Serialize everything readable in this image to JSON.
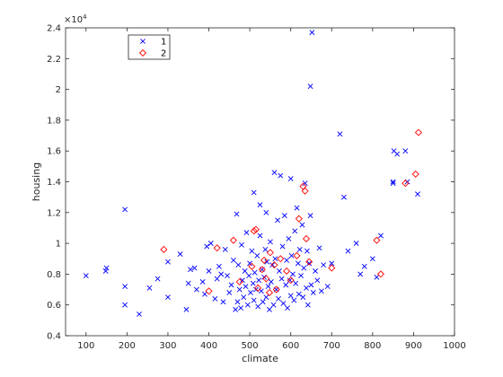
{
  "chart_data": {
    "type": "scatter",
    "xlabel": "climate",
    "ylabel": "housing",
    "xlim": [
      50,
      1000
    ],
    "ylim": [
      4000,
      24000
    ],
    "xticks": [
      100,
      200,
      300,
      400,
      500,
      600,
      700,
      800,
      900,
      1000
    ],
    "yticks": [
      4000,
      6000,
      8000,
      10000,
      12000,
      14000,
      16000,
      18000,
      20000,
      22000,
      24000
    ],
    "ytick_labels": [
      "0.4",
      "0.6",
      "0.8",
      "1",
      "1.2",
      "1.4",
      "1.6",
      "1.8",
      "2",
      "2.2",
      "2.4"
    ],
    "y_exponent_label": "×10",
    "y_exponent_power": "4",
    "legend_position": "top-left",
    "grid": false,
    "series": [
      {
        "name": "1",
        "marker": "x",
        "color": "#0000ff",
        "points": [
          [
            100,
            7900
          ],
          [
            148,
            8200
          ],
          [
            150,
            8400
          ],
          [
            195,
            12200
          ],
          [
            195,
            7200
          ],
          [
            195,
            6000
          ],
          [
            230,
            5400
          ],
          [
            255,
            7100
          ],
          [
            275,
            7700
          ],
          [
            300,
            6500
          ],
          [
            300,
            8800
          ],
          [
            330,
            9300
          ],
          [
            345,
            5700
          ],
          [
            350,
            7400
          ],
          [
            355,
            8300
          ],
          [
            365,
            8400
          ],
          [
            370,
            7000
          ],
          [
            385,
            7500
          ],
          [
            390,
            6700
          ],
          [
            395,
            9800
          ],
          [
            400,
            8200
          ],
          [
            405,
            10000
          ],
          [
            415,
            6400
          ],
          [
            420,
            7700
          ],
          [
            425,
            8500
          ],
          [
            430,
            8000
          ],
          [
            435,
            6200
          ],
          [
            440,
            9600
          ],
          [
            445,
            7900
          ],
          [
            450,
            6800
          ],
          [
            455,
            7300
          ],
          [
            460,
            8900
          ],
          [
            465,
            5700
          ],
          [
            468,
            11900
          ],
          [
            470,
            6200
          ],
          [
            472,
            8600
          ],
          [
            475,
            7000
          ],
          [
            478,
            5800
          ],
          [
            480,
            9900
          ],
          [
            482,
            7600
          ],
          [
            485,
            6500
          ],
          [
            488,
            8200
          ],
          [
            490,
            7200
          ],
          [
            492,
            10700
          ],
          [
            495,
            6000
          ],
          [
            498,
            7900
          ],
          [
            500,
            8700
          ],
          [
            502,
            6800
          ],
          [
            505,
            9500
          ],
          [
            508,
            7400
          ],
          [
            510,
            13300
          ],
          [
            510,
            6300
          ],
          [
            512,
            8100
          ],
          [
            515,
            7000
          ],
          [
            518,
            9200
          ],
          [
            520,
            5900
          ],
          [
            522,
            7600
          ],
          [
            525,
            10500
          ],
          [
            525,
            12500
          ],
          [
            528,
            6900
          ],
          [
            530,
            8300
          ],
          [
            532,
            6200
          ],
          [
            535,
            7800
          ],
          [
            538,
            9600
          ],
          [
            540,
            6500
          ],
          [
            540,
            12000
          ],
          [
            542,
            8800
          ],
          [
            545,
            7200
          ],
          [
            548,
            5700
          ],
          [
            550,
            10100
          ],
          [
            552,
            7500
          ],
          [
            555,
            8600
          ],
          [
            558,
            6000
          ],
          [
            560,
            14600
          ],
          [
            562,
            9000
          ],
          [
            565,
            7000
          ],
          [
            568,
            11500
          ],
          [
            570,
            6400
          ],
          [
            572,
            8200
          ],
          [
            575,
            14400
          ],
          [
            578,
            7700
          ],
          [
            580,
            9800
          ],
          [
            582,
            6100
          ],
          [
            585,
            11800
          ],
          [
            588,
            7300
          ],
          [
            590,
            8900
          ],
          [
            592,
            5800
          ],
          [
            595,
            10300
          ],
          [
            598,
            7600
          ],
          [
            600,
            6600
          ],
          [
            600,
            14200
          ],
          [
            602,
            9200
          ],
          [
            605,
            8000
          ],
          [
            608,
            6300
          ],
          [
            610,
            10800
          ],
          [
            612,
            7400
          ],
          [
            615,
            12300
          ],
          [
            618,
            8700
          ],
          [
            620,
            6700
          ],
          [
            622,
            9600
          ],
          [
            625,
            7900
          ],
          [
            628,
            11200
          ],
          [
            630,
            6500
          ],
          [
            632,
            8400
          ],
          [
            635,
            13900
          ],
          [
            638,
            7100
          ],
          [
            640,
            9500
          ],
          [
            642,
            6000
          ],
          [
            645,
            8700
          ],
          [
            648,
            11800
          ],
          [
            650,
            7300
          ],
          [
            652,
            23700
          ],
          [
            648,
            20200
          ],
          [
            655,
            6800
          ],
          [
            660,
            8200
          ],
          [
            665,
            7600
          ],
          [
            670,
            9700
          ],
          [
            675,
            6900
          ],
          [
            680,
            8600
          ],
          [
            690,
            7200
          ],
          [
            700,
            8700
          ],
          [
            720,
            17100
          ],
          [
            730,
            13000
          ],
          [
            740,
            9500
          ],
          [
            760,
            10000
          ],
          [
            770,
            8000
          ],
          [
            780,
            8500
          ],
          [
            800,
            9000
          ],
          [
            810,
            7800
          ],
          [
            820,
            10500
          ],
          [
            850,
            14000
          ],
          [
            850,
            13900
          ],
          [
            852,
            16000
          ],
          [
            860,
            15800
          ],
          [
            880,
            16000
          ],
          [
            885,
            14000
          ],
          [
            910,
            13200
          ]
        ]
      },
      {
        "name": "2",
        "marker": "diamond",
        "color": "#ff0000",
        "points": [
          [
            290,
            9600
          ],
          [
            400,
            6900
          ],
          [
            420,
            9700
          ],
          [
            460,
            10200
          ],
          [
            475,
            7500
          ],
          [
            505,
            8500
          ],
          [
            510,
            10800
          ],
          [
            515,
            10900
          ],
          [
            520,
            7100
          ],
          [
            530,
            8300
          ],
          [
            535,
            8900
          ],
          [
            540,
            7700
          ],
          [
            548,
            6800
          ],
          [
            550,
            9400
          ],
          [
            560,
            8600
          ],
          [
            565,
            7000
          ],
          [
            575,
            9000
          ],
          [
            590,
            8200
          ],
          [
            600,
            7600
          ],
          [
            615,
            9200
          ],
          [
            620,
            11600
          ],
          [
            630,
            13700
          ],
          [
            635,
            13400
          ],
          [
            638,
            10300
          ],
          [
            645,
            8800
          ],
          [
            700,
            8400
          ],
          [
            810,
            10200
          ],
          [
            820,
            8000
          ],
          [
            880,
            13900
          ],
          [
            905,
            14500
          ],
          [
            912,
            17200
          ]
        ]
      }
    ]
  }
}
